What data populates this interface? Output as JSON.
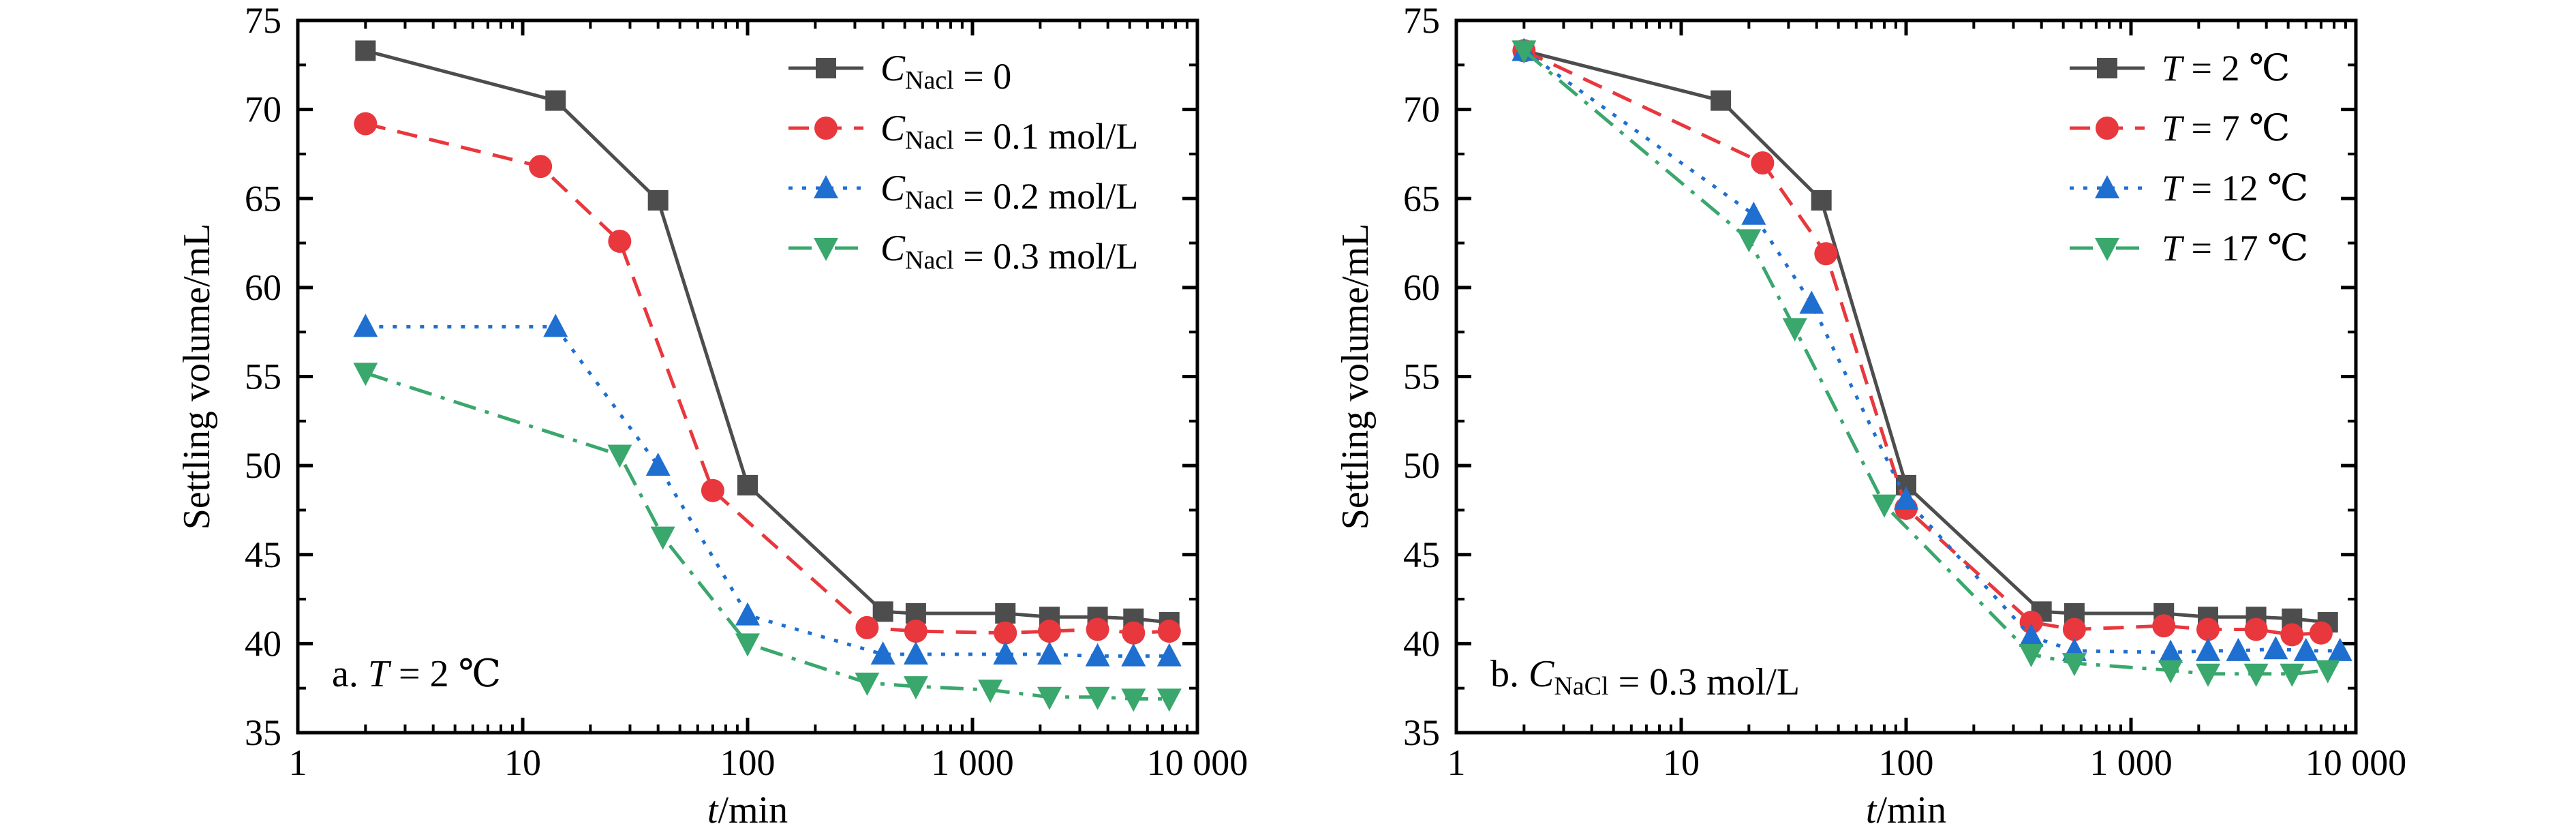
{
  "chart_data": [
    {
      "type": "line",
      "x_scale": "log",
      "xlim": [
        1,
        10000
      ],
      "ylim": [
        35,
        75
      ],
      "xticks": [
        1,
        10,
        100,
        1000,
        10000
      ],
      "xtick_labels": [
        "1",
        "10",
        "100",
        "1 000",
        "10 000"
      ],
      "yticks": [
        35,
        40,
        45,
        50,
        55,
        60,
        65,
        70,
        75
      ],
      "ytick_labels": [
        "35",
        "40",
        "45",
        "50",
        "55",
        "60",
        "65",
        "70",
        "75"
      ],
      "xlabel": {
        "var": "t",
        "rest": "/min"
      },
      "ylabel": "Settling volume/mL",
      "legend_position": "top-right",
      "annotation": {
        "prefix": "a. ",
        "var": "T",
        "rest": " = 2 ℃"
      },
      "series": [
        {
          "name": "CNacl = 0",
          "legend": {
            "var": "C",
            "sub": "Nacl",
            "rest": " = 0"
          },
          "color": "#4d4d4d",
          "marker": "square",
          "line": "solid",
          "x": [
            2,
            14,
            40,
            100,
            400,
            560,
            1400,
            2200,
            3600,
            5200,
            7500
          ],
          "y": [
            73.3,
            70.5,
            64.9,
            48.9,
            41.8,
            41.7,
            41.7,
            41.5,
            41.5,
            41.4,
            41.2
          ]
        },
        {
          "name": "CNacl = 0.1 mol/L",
          "legend": {
            "var": "C",
            "sub": "Nacl",
            "rest": " = 0.1 mol/L"
          },
          "color": "#e8383d",
          "marker": "circle",
          "line": "dash",
          "x": [
            2,
            12,
            27,
            70,
            340,
            560,
            1400,
            2200,
            3600,
            5200,
            7500
          ],
          "y": [
            69.2,
            66.8,
            62.6,
            48.6,
            40.9,
            40.7,
            40.6,
            40.7,
            40.8,
            40.6,
            40.7
          ]
        },
        {
          "name": "CNacl = 0.2 mol/L",
          "legend": {
            "var": "C",
            "sub": "Nacl",
            "rest": " = 0.2 mol/L"
          },
          "color": "#1f6fd1",
          "marker": "triangle-up",
          "line": "dot",
          "x": [
            2,
            14,
            40,
            100,
            400,
            560,
            1400,
            2200,
            3600,
            5200,
            7500
          ],
          "y": [
            57.8,
            57.8,
            50.0,
            41.6,
            39.4,
            39.4,
            39.4,
            39.4,
            39.3,
            39.3,
            39.3
          ]
        },
        {
          "name": "CNacl = 0.3 mol/L",
          "legend": {
            "var": "C",
            "sub": "Nacl",
            "rest": " = 0.3 mol/L"
          },
          "color": "#3aa76d",
          "marker": "triangle-down",
          "line": "dashdot",
          "x": [
            2,
            27,
            42,
            100,
            340,
            560,
            1200,
            2200,
            3600,
            5200,
            7500
          ],
          "y": [
            55.2,
            50.6,
            46.0,
            40.0,
            37.8,
            37.6,
            37.4,
            37.0,
            37.0,
            36.9,
            36.9
          ]
        }
      ]
    },
    {
      "type": "line",
      "x_scale": "log",
      "xlim": [
        1,
        10000
      ],
      "ylim": [
        35,
        75
      ],
      "xticks": [
        1,
        10,
        100,
        1000,
        10000
      ],
      "xtick_labels": [
        "1",
        "10",
        "100",
        "1 000",
        "10 000"
      ],
      "yticks": [
        35,
        40,
        45,
        50,
        55,
        60,
        65,
        70,
        75
      ],
      "ytick_labels": [
        "35",
        "40",
        "45",
        "50",
        "55",
        "60",
        "65",
        "70",
        "75"
      ],
      "xlabel": {
        "var": "t",
        "rest": "/min"
      },
      "ylabel": "Settling volume/mL",
      "legend_position": "top-right",
      "annotation": {
        "prefix": "b. ",
        "var": "C",
        "sub": "NaCl",
        "rest": " = 0.3 mol/L"
      },
      "series": [
        {
          "name": "T = 2 ℃",
          "legend": {
            "var": "T",
            "sub": "",
            "rest": " = 2 ℃"
          },
          "color": "#4d4d4d",
          "marker": "square",
          "line": "solid",
          "x": [
            2,
            15,
            42,
            100,
            400,
            560,
            1400,
            2200,
            3600,
            5200,
            7500
          ],
          "y": [
            73.3,
            70.5,
            64.9,
            48.9,
            41.8,
            41.7,
            41.7,
            41.5,
            41.5,
            41.4,
            41.2
          ]
        },
        {
          "name": "T = 7 ℃",
          "legend": {
            "var": "T",
            "sub": "",
            "rest": " = 7 ℃"
          },
          "color": "#e8383d",
          "marker": "circle",
          "line": "dash",
          "x": [
            2,
            23,
            44,
            100,
            360,
            560,
            1400,
            2200,
            3600,
            5200,
            7000
          ],
          "y": [
            73.3,
            67.0,
            61.9,
            47.6,
            41.2,
            40.8,
            41.0,
            40.8,
            40.8,
            40.5,
            40.6
          ]
        },
        {
          "name": "T = 12 ℃",
          "legend": {
            "var": "T",
            "sub": "",
            "rest": " = 12 ℃"
          },
          "color": "#1f6fd1",
          "marker": "triangle-up",
          "line": "dot",
          "x": [
            2,
            21,
            38,
            100,
            360,
            560,
            1500,
            2200,
            3000,
            4400,
            6000,
            8500
          ],
          "y": [
            73.3,
            64.1,
            59.1,
            48.1,
            40.4,
            39.6,
            39.5,
            39.6,
            39.6,
            39.7,
            39.6,
            39.6
          ]
        },
        {
          "name": "T = 17 ℃",
          "legend": {
            "var": "T",
            "sub": "",
            "rest": " = 17 ℃"
          },
          "color": "#3aa76d",
          "marker": "triangle-down",
          "line": "dashdot",
          "x": [
            2,
            20,
            32,
            80,
            360,
            560,
            1500,
            2200,
            3600,
            5200,
            7500
          ],
          "y": [
            73.3,
            62.7,
            57.7,
            47.8,
            39.4,
            38.9,
            38.5,
            38.3,
            38.3,
            38.3,
            38.5
          ]
        }
      ]
    }
  ]
}
